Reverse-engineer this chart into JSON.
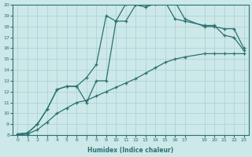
{
  "xlabel": "Humidex (Indice chaleur)",
  "ylabel": "",
  "bg_color": "#cce8e8",
  "line_color": "#2d7070",
  "grid_color": "#aad0d0",
  "ylim": [
    8,
    20
  ],
  "xlim": [
    -0.5,
    23.5
  ],
  "yticks": [
    8,
    9,
    10,
    11,
    12,
    13,
    14,
    15,
    16,
    17,
    18,
    19,
    20
  ],
  "xtick_positions": [
    0,
    1,
    2,
    3,
    4,
    5,
    6,
    7,
    8,
    9,
    10,
    11,
    12,
    13,
    14,
    15,
    16,
    17,
    19,
    20,
    21,
    22,
    23
  ],
  "xtick_labels": [
    "0",
    "1",
    "2",
    "3",
    "4",
    "5",
    "6",
    "7",
    "8",
    "9",
    "10",
    "11",
    "12",
    "13",
    "14",
    "15",
    "16",
    "17",
    "19",
    "20",
    "21",
    "22",
    "23"
  ],
  "line1_x": [
    0,
    1,
    2,
    3,
    4,
    5,
    6,
    7,
    8,
    9,
    10,
    11,
    12,
    13,
    14,
    15,
    16,
    17,
    19,
    20,
    21,
    22,
    23
  ],
  "line1_y": [
    8.1,
    8.2,
    9.0,
    10.4,
    12.2,
    12.5,
    12.5,
    13.3,
    14.5,
    19.0,
    18.5,
    20.1,
    20.3,
    20.0,
    20.3,
    20.3,
    18.7,
    18.5,
    18.1,
    18.1,
    17.2,
    17.0,
    15.8
  ],
  "line2_x": [
    0,
    1,
    2,
    3,
    4,
    5,
    6,
    7,
    8,
    9,
    10,
    11,
    12,
    13,
    14,
    15,
    16,
    17,
    19,
    20,
    21,
    22,
    23
  ],
  "line2_y": [
    8.1,
    8.2,
    9.0,
    10.4,
    12.2,
    12.5,
    12.5,
    11.0,
    13.0,
    13.0,
    18.5,
    18.5,
    20.0,
    19.8,
    20.1,
    20.3,
    20.3,
    18.7,
    18.0,
    18.0,
    17.8,
    17.8,
    16.0
  ],
  "line3_x": [
    0,
    1,
    2,
    3,
    4,
    5,
    6,
    7,
    8,
    9,
    10,
    11,
    12,
    13,
    14,
    15,
    16,
    17,
    19,
    20,
    21,
    22,
    23
  ],
  "line3_y": [
    8.0,
    8.1,
    8.5,
    9.2,
    10.0,
    10.5,
    11.0,
    11.2,
    11.6,
    12.0,
    12.4,
    12.8,
    13.2,
    13.7,
    14.2,
    14.7,
    15.0,
    15.2,
    15.5,
    15.5,
    15.5,
    15.5,
    15.5
  ]
}
